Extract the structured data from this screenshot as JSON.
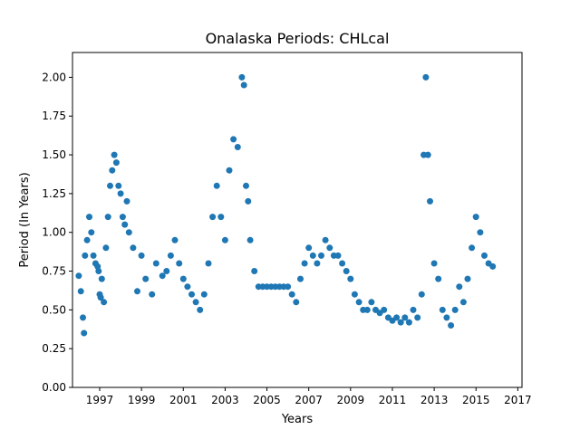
{
  "chart_data": {
    "type": "scatter",
    "title": "Onalaska Periods: CHLcal",
    "xlabel": "Years",
    "ylabel": "Period (In Years)",
    "xlim": [
      1995.7,
      2017.2
    ],
    "ylim": [
      0,
      2.16
    ],
    "x_ticks": [
      "1997",
      "1999",
      "2001",
      "2003",
      "2005",
      "2007",
      "2009",
      "2011",
      "2013",
      "2015",
      "2017"
    ],
    "y_ticks": [
      "0.00",
      "0.25",
      "0.50",
      "0.75",
      "1.00",
      "1.25",
      "1.50",
      "1.75",
      "2.00"
    ],
    "grid": false,
    "legend": "none",
    "marker_color": "#1f77b4",
    "series": [
      {
        "x": [
          1996.0,
          1996.1,
          1996.2,
          1996.25,
          1996.3,
          1996.4,
          1996.5,
          1996.6,
          1996.7,
          1996.8,
          1996.9,
          1996.95,
          1997.0,
          1997.05,
          1997.1,
          1997.2,
          1997.3,
          1997.4,
          1997.5,
          1997.6,
          1997.7,
          1997.8,
          1997.9,
          1998.0,
          1998.1,
          1998.2,
          1998.3,
          1998.4,
          1998.6,
          1998.8,
          1999.0,
          1999.2,
          1999.5,
          1999.7,
          2000.0,
          2000.2,
          2000.4,
          2000.6,
          2000.8,
          2001.0,
          2001.2,
          2001.4,
          2001.6,
          2001.8,
          2002.0,
          2002.2,
          2002.4,
          2002.6,
          2002.8,
          2003.0,
          2003.2,
          2003.4,
          2003.6,
          2003.8,
          2003.9,
          2004.0,
          2004.1,
          2004.2,
          2004.4,
          2004.6,
          2004.8,
          2005.0,
          2005.2,
          2005.4,
          2005.6,
          2005.8,
          2006.0,
          2006.2,
          2006.4,
          2006.6,
          2006.8,
          2007.0,
          2007.2,
          2007.4,
          2007.6,
          2007.8,
          2008.0,
          2008.2,
          2008.4,
          2008.6,
          2008.8,
          2009.0,
          2009.2,
          2009.4,
          2009.6,
          2009.8,
          2010.0,
          2010.2,
          2010.4,
          2010.6,
          2010.8,
          2011.0,
          2011.2,
          2011.4,
          2011.6,
          2011.8,
          2012.0,
          2012.2,
          2012.4,
          2012.5,
          2012.6,
          2012.7,
          2012.8,
          2013.0,
          2013.2,
          2013.4,
          2013.6,
          2013.8,
          2014.0,
          2014.2,
          2014.4,
          2014.6,
          2014.8,
          2015.0,
          2015.2,
          2015.4,
          2015.6,
          2015.8
        ],
        "y": [
          0.72,
          0.62,
          0.45,
          0.35,
          0.85,
          0.95,
          1.1,
          1.0,
          0.85,
          0.8,
          0.78,
          0.75,
          0.6,
          0.58,
          0.7,
          0.55,
          0.9,
          1.1,
          1.3,
          1.4,
          1.5,
          1.45,
          1.3,
          1.25,
          1.1,
          1.05,
          1.2,
          1.0,
          0.9,
          0.62,
          0.85,
          0.7,
          0.6,
          0.8,
          0.72,
          0.75,
          0.85,
          0.95,
          0.8,
          0.7,
          0.65,
          0.6,
          0.55,
          0.5,
          0.6,
          0.8,
          1.1,
          1.3,
          1.1,
          0.95,
          1.4,
          1.6,
          1.55,
          2.0,
          1.95,
          1.3,
          1.2,
          0.95,
          0.75,
          0.65,
          0.65,
          0.65,
          0.65,
          0.65,
          0.65,
          0.65,
          0.65,
          0.6,
          0.55,
          0.7,
          0.8,
          0.9,
          0.85,
          0.8,
          0.85,
          0.95,
          0.9,
          0.85,
          0.85,
          0.8,
          0.75,
          0.7,
          0.6,
          0.55,
          0.5,
          0.5,
          0.55,
          0.5,
          0.48,
          0.5,
          0.45,
          0.43,
          0.45,
          0.42,
          0.45,
          0.42,
          0.5,
          0.45,
          0.6,
          1.5,
          2.0,
          1.5,
          1.2,
          0.8,
          0.7,
          0.5,
          0.45,
          0.4,
          0.5,
          0.65,
          0.55,
          0.7,
          0.9,
          1.1,
          1.0,
          0.85,
          0.8,
          0.78
        ]
      }
    ]
  }
}
